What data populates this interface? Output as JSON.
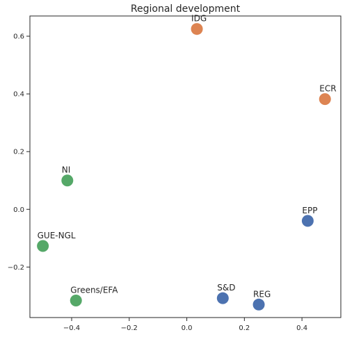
{
  "chart_data": {
    "type": "scatter",
    "title": "Regional development",
    "xlabel": "",
    "ylabel": "",
    "xlim": [
      -0.545,
      0.535
    ],
    "ylim": [
      -0.375,
      0.67
    ],
    "grid": false,
    "x_ticks": [
      -0.4,
      -0.2,
      0.0,
      0.2,
      0.4
    ],
    "x_tick_labels": [
      "−0.4",
      "−0.2",
      "0.0",
      "0.2",
      "0.4"
    ],
    "y_ticks": [
      -0.2,
      0.0,
      0.2,
      0.4,
      0.6
    ],
    "y_tick_labels": [
      "−0.2",
      "0.0",
      "0.2",
      "0.4",
      "0.6"
    ],
    "colors": {
      "blue": "#4c72b0",
      "orange": "#dd8452",
      "green": "#55a868"
    },
    "points": [
      {
        "label": "IDG",
        "x": 0.035,
        "y": 0.625,
        "color": "orange"
      },
      {
        "label": "ECR",
        "x": 0.48,
        "y": 0.382,
        "color": "orange"
      },
      {
        "label": "NI",
        "x": -0.415,
        "y": 0.1,
        "color": "green"
      },
      {
        "label": "GUE-NGL",
        "x": -0.5,
        "y": -0.127,
        "color": "green"
      },
      {
        "label": "Greens/EFA",
        "x": -0.385,
        "y": -0.316,
        "color": "green"
      },
      {
        "label": "EPP",
        "x": 0.42,
        "y": -0.04,
        "color": "blue"
      },
      {
        "label": "S&D",
        "x": 0.125,
        "y": -0.308,
        "color": "blue"
      },
      {
        "label": "REG",
        "x": 0.25,
        "y": -0.33,
        "color": "blue"
      }
    ]
  }
}
